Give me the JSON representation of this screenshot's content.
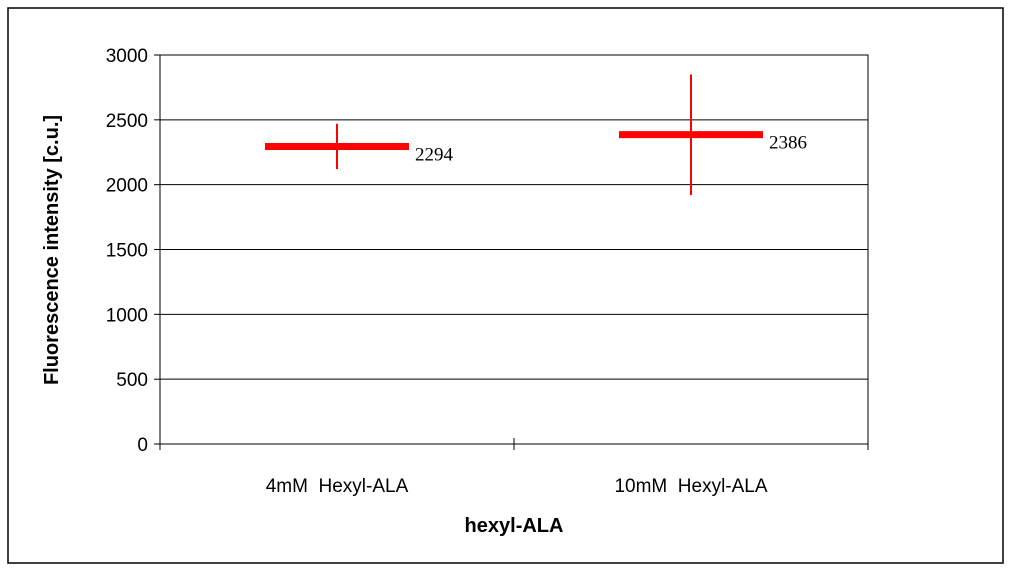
{
  "chart_data": {
    "type": "scatter",
    "title": "",
    "xlabel": "hexyl-ALA",
    "ylabel": "Fluorescence intensity [c.u.]",
    "ylim": [
      0,
      3000
    ],
    "yticks": [
      0,
      500,
      1000,
      1500,
      2000,
      2500,
      3000
    ],
    "ytick_labels": [
      "0",
      "500",
      "1000",
      "1500",
      "2000",
      "2500",
      "3000"
    ],
    "categories": [
      "4mM  Hexyl-ALA",
      "10mM  Hexyl-ALA"
    ],
    "values": [
      2294,
      2386
    ],
    "error_low": [
      2120,
      1920
    ],
    "error_high": [
      2470,
      2850
    ],
    "data_labels": [
      "2294",
      "2386"
    ],
    "grid": true,
    "legend": "none",
    "marker_color": "#ff0000"
  }
}
